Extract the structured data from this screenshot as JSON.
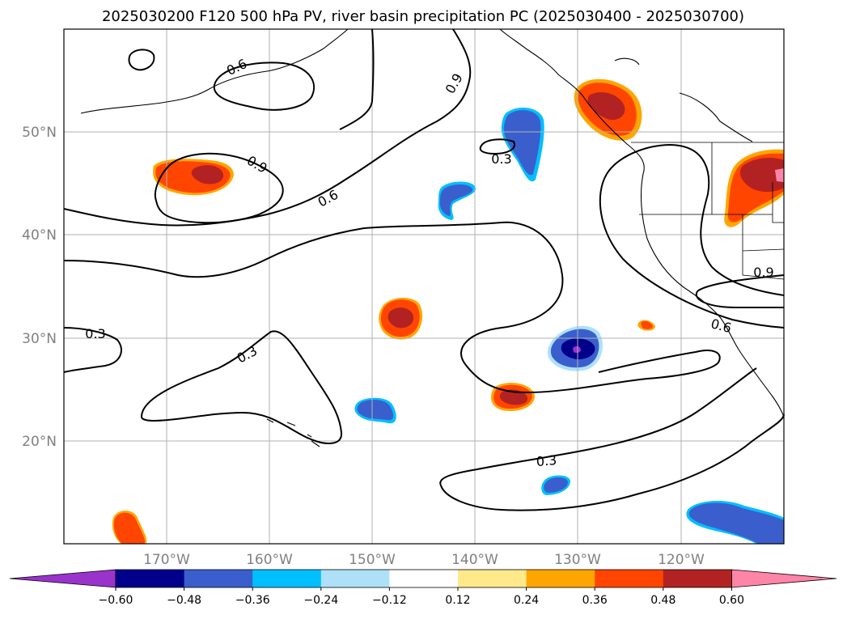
{
  "title": "2025030200 F120 500 hPa PV, river basin precipitation PC (2025030400 - 2025030700)",
  "map": {
    "lon_range": [
      -180,
      -110
    ],
    "lat_range": [
      10,
      60
    ],
    "lon_ticks": [
      "170°W",
      "160°W",
      "150°W",
      "140°W",
      "130°W",
      "120°W"
    ],
    "lat_ticks": [
      "50°N",
      "40°N",
      "30°N",
      "20°N"
    ],
    "contour_labels": [
      "0.6",
      "0.9",
      "0.9",
      "0.3",
      "0.6",
      "0.3",
      "0.3",
      "0.9",
      "0.6",
      "0.3"
    ]
  },
  "colorbar": {
    "tick_labels": [
      "−0.60",
      "−0.48",
      "−0.36",
      "−0.24",
      "−0.12",
      "0.12",
      "0.24",
      "0.36",
      "0.48",
      "0.60"
    ],
    "colors": [
      "#9933cc",
      "#00008b",
      "#3a5fcd",
      "#00bfff",
      "#aee1f7",
      "#ffffff",
      "#ffe98a",
      "#ffa500",
      "#ff4500",
      "#b22222",
      "#ff85a8"
    ],
    "extend": "both"
  },
  "colors": {
    "contour": "#000000",
    "grid": "#b0b0b0",
    "tick_label": "#808080"
  }
}
